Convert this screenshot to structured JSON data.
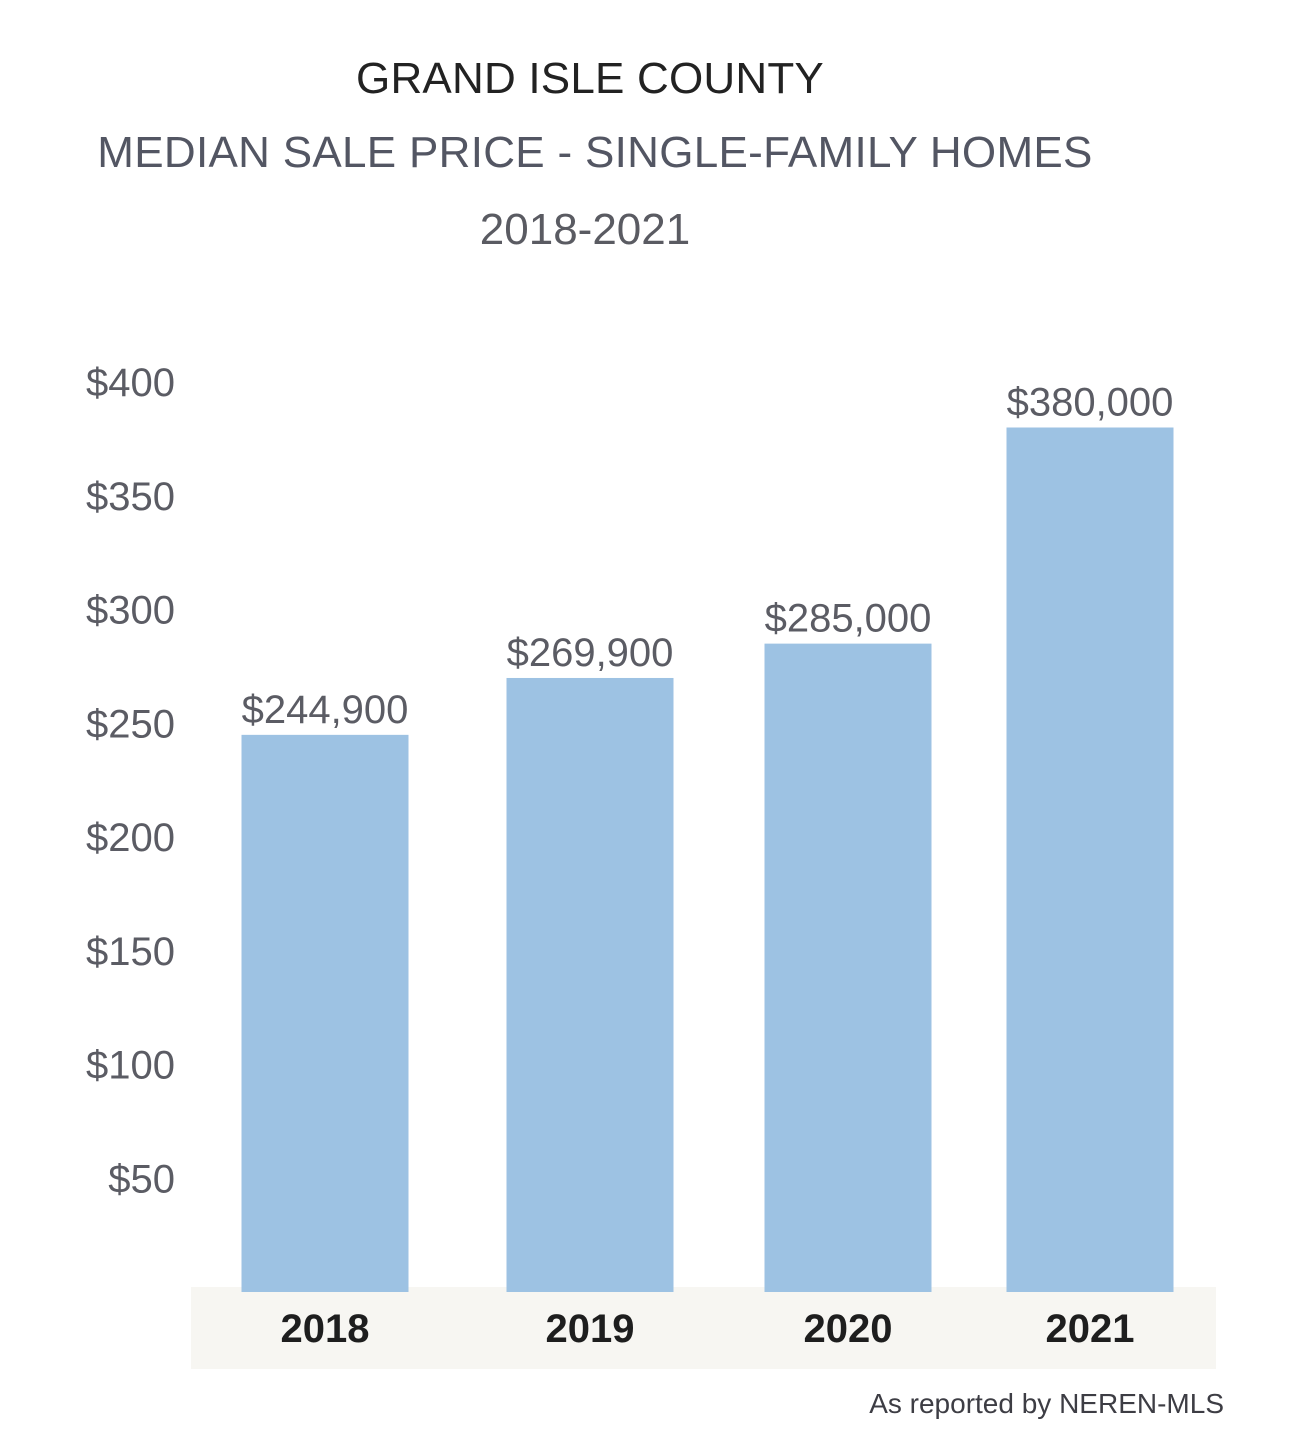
{
  "header": {
    "county": "GRAND ISLE COUNTY",
    "metric": "MEDIAN SALE PRICE - SINGLE-FAMILY HOMES",
    "range": "2018-2021"
  },
  "source": "As reported by NEREN-MLS",
  "colors": {
    "bar": "#9dc2e3",
    "axis_band": "#f7f6f2",
    "tick_text": "#5b5c64",
    "label_text": "#5b5c64",
    "category_text": "#1e1e1e"
  },
  "chart_data": {
    "type": "bar",
    "title": "MEDIAN SALE PRICE - SINGLE-FAMILY HOMES",
    "subtitle": "2018-2021",
    "categories": [
      "2018",
      "2019",
      "2020",
      "2021"
    ],
    "values": [
      244900,
      269900,
      285000,
      380000
    ],
    "data_labels": [
      "$244,900",
      "$269,900",
      "$285,000",
      "$380,000"
    ],
    "y_ticks": [
      50,
      100,
      150,
      200,
      250,
      300,
      350,
      400
    ],
    "y_tick_labels": [
      "$50",
      "$100",
      "$150",
      "$200",
      "$250",
      "$300",
      "$350",
      "$400"
    ],
    "y_unit": "thousands of dollars",
    "ylim": [
      0,
      400
    ],
    "grid": false,
    "legend": "none"
  }
}
